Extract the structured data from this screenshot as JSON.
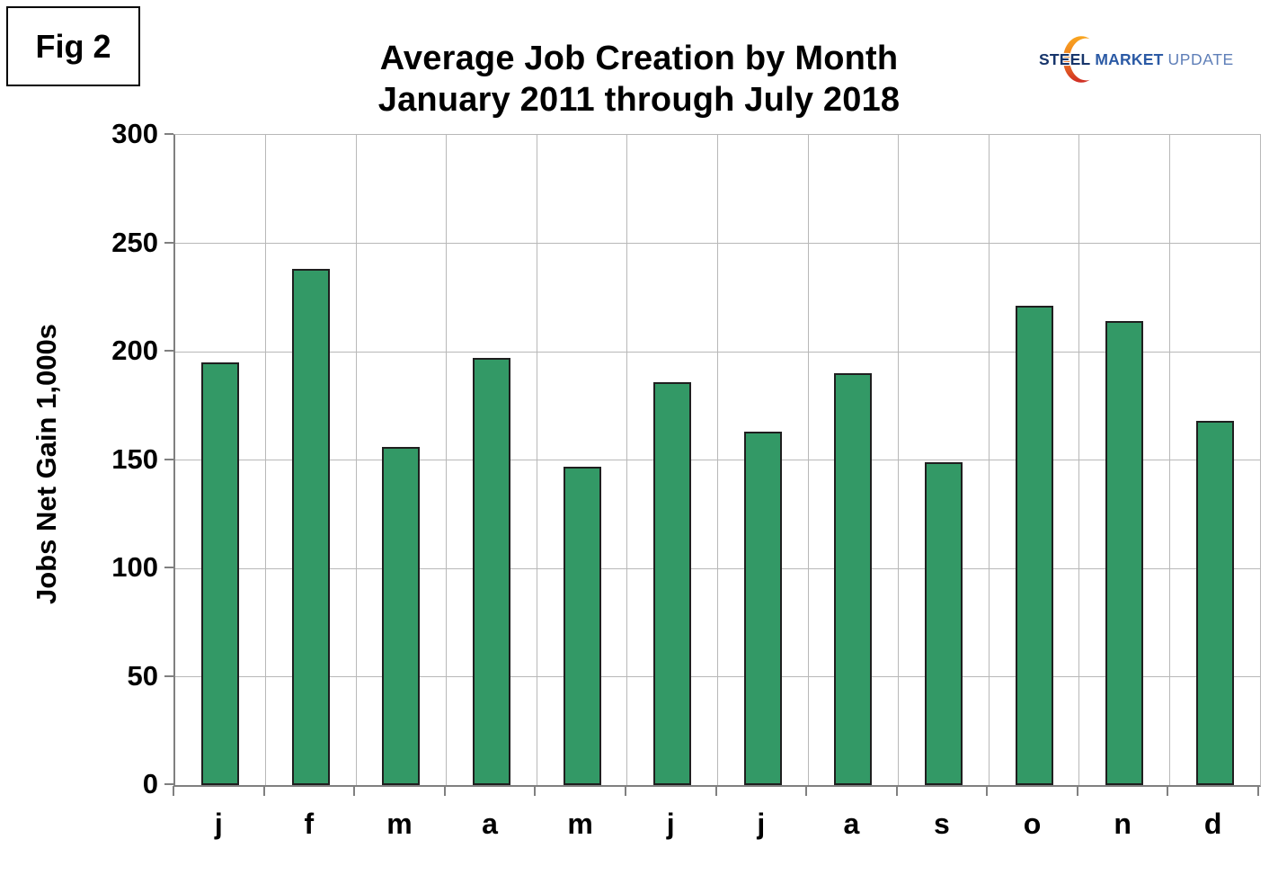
{
  "figure": {
    "label": "Fig 2"
  },
  "logo": {
    "steel": "STEEL",
    "market": "MARKET",
    "update": "UPDATE",
    "steel_color": "#17356b",
    "market_color": "#2b5aa5",
    "update_color": "#5f7fb8",
    "crescent_top": "#f9a61f",
    "crescent_mid": "#ef7d22",
    "crescent_bottom": "#cf2c24"
  },
  "chart_data": {
    "type": "bar",
    "title": "Average Job Creation by Month",
    "subtitle": "January 2011 through July 2018",
    "xlabel": "",
    "ylabel": "Jobs Net Gain 1,000s",
    "categories": [
      "j",
      "f",
      "m",
      "a",
      "m",
      "j",
      "j",
      "a",
      "s",
      "o",
      "n",
      "d"
    ],
    "values": [
      195,
      238,
      156,
      197,
      147,
      186,
      163,
      190,
      149,
      221,
      214,
      168
    ],
    "yticks": [
      0,
      50,
      100,
      150,
      200,
      250,
      300
    ],
    "ylim": [
      0,
      300
    ],
    "grid": true,
    "legend": "none",
    "bar_color": "#339966",
    "bar_border_color": "#1f1f1f"
  }
}
